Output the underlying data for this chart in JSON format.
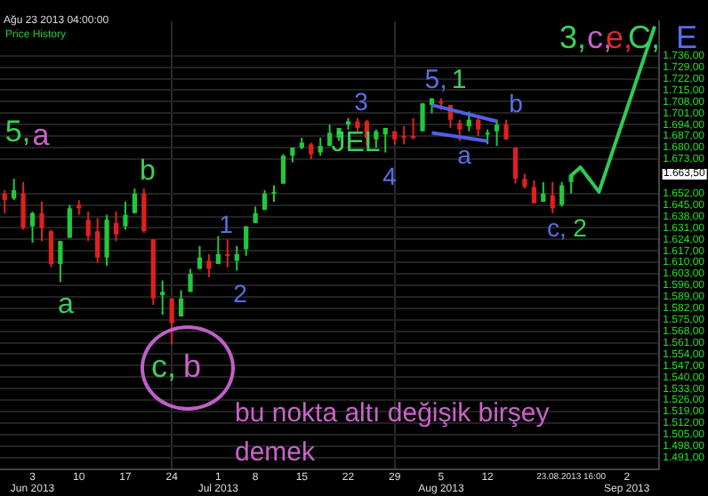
{
  "chart_data": {
    "type": "candlestick",
    "subtitle": "Ağu 23 2013 04:00:00",
    "categories": [
      null,
      null,
      null,
      "3\nJun 2013",
      null,
      null,
      null,
      null,
      "10",
      null,
      null,
      null,
      null,
      "17",
      null,
      null,
      null,
      null,
      "24",
      null,
      null,
      null,
      null,
      "1\nJul 2013",
      null,
      null,
      null,
      "8",
      null,
      null,
      null,
      null,
      "15",
      null,
      null,
      null,
      null,
      "22",
      null,
      null,
      null,
      null,
      "29",
      null,
      null,
      null,
      null,
      "5\nAug 2013",
      null,
      null,
      null,
      null,
      "12",
      null,
      null,
      null,
      null,
      null,
      null,
      null,
      null,
      null,
      null,
      null,
      null,
      null,
      null,
      "2\nSep 2013",
      null,
      null,
      null
    ],
    "ohlc": [
      [
        1652,
        1654,
        1640,
        1648
      ],
      [
        1649,
        1661,
        1648,
        1654
      ],
      [
        1652,
        1659,
        1630,
        1631
      ],
      [
        1632,
        1641,
        1622,
        1640
      ],
      [
        1640,
        1647,
        1623,
        1631
      ],
      [
        1629,
        1630,
        1607,
        1609
      ],
      [
        1609,
        1623,
        1598,
        1623
      ],
      [
        1625,
        1645,
        1625,
        1643
      ],
      [
        1645,
        1648,
        1639,
        1643
      ],
      [
        1636,
        1641,
        1623,
        1626
      ],
      [
        1629,
        1637,
        1610,
        1613
      ],
      [
        1613,
        1639,
        1608,
        1636
      ],
      [
        1634,
        1641,
        1623,
        1627
      ],
      [
        1632,
        1647,
        1630,
        1639
      ],
      [
        1640,
        1655,
        1640,
        1652
      ],
      [
        1652,
        1655,
        1628,
        1629
      ],
      [
        1624,
        1624,
        1584,
        1588
      ],
      [
        1590,
        1599,
        1578,
        1592
      ],
      [
        1588,
        1588,
        1560,
        1573
      ],
      [
        1577,
        1593,
        1577,
        1588
      ],
      [
        1592,
        1606,
        1592,
        1603
      ],
      [
        1606,
        1620,
        1606,
        1613
      ],
      [
        1611,
        1615,
        1601,
        1606
      ],
      [
        1609,
        1626,
        1609,
        1615
      ],
      [
        1615,
        1624,
        1607,
        1614
      ],
      [
        1611,
        1620,
        1605,
        1615
      ],
      [
        1618,
        1632,
        1614,
        1632
      ],
      [
        1634,
        1644,
        1634,
        1640
      ],
      [
        1642,
        1654,
        1642,
        1652
      ],
      [
        1652,
        1657,
        1647,
        1653
      ],
      [
        1658,
        1676,
        1658,
        1675
      ],
      [
        1675,
        1680,
        1671,
        1680
      ],
      [
        1680,
        1686,
        1679,
        1683
      ],
      [
        1682,
        1683,
        1673,
        1676
      ],
      [
        1677,
        1686,
        1675,
        1681
      ],
      [
        1681,
        1694,
        1681,
        1689
      ],
      [
        1686,
        1692,
        1684,
        1692
      ],
      [
        1694,
        1698,
        1691,
        1696
      ],
      [
        1696,
        1698,
        1690,
        1692
      ],
      [
        1696,
        1697,
        1681,
        1686
      ],
      [
        1685,
        1691,
        1680,
        1690
      ],
      [
        1688,
        1692,
        1677,
        1692
      ],
      [
        1690,
        1690,
        1682,
        1685
      ],
      [
        1687,
        1693,
        1682,
        1686
      ],
      [
        1687,
        1698,
        1685,
        1686
      ],
      [
        1690,
        1707,
        1690,
        1707
      ],
      [
        1706,
        1710,
        1701,
        1710
      ],
      [
        1708,
        1710,
        1703,
        1707
      ],
      [
        1706,
        1706,
        1692,
        1697
      ],
      [
        1695,
        1697,
        1684,
        1691
      ],
      [
        1693,
        1702,
        1690,
        1697
      ],
      [
        1697,
        1700,
        1687,
        1691
      ],
      [
        1689,
        1691,
        1682,
        1689
      ],
      [
        1690,
        1697,
        1681,
        1694
      ],
      [
        1694,
        1697,
        1685,
        1685
      ],
      [
        1680,
        1680,
        1658,
        1661
      ],
      [
        1661,
        1664,
        1655,
        1656
      ],
      [
        1656,
        1660,
        1646,
        1646
      ],
      [
        1647,
        1659,
        1647,
        1652
      ],
      [
        1651,
        1659,
        1640,
        1643
      ],
      [
        1645,
        1659,
        1644,
        1657
      ],
      [
        1659,
        1664,
        1652,
        1663.5
      ],
      null,
      null,
      null,
      null,
      null,
      null,
      null,
      null,
      null
    ],
    "colors": [
      "#e02020",
      "#22c83c",
      "#e02020",
      "#22c83c",
      "#e02020",
      "#e02020",
      "#22c83c",
      "#22c83c",
      "#e02020",
      "#e02020",
      "#e02020",
      "#22c83c",
      "#e02020",
      "#22c83c",
      "#22c83c",
      "#e02020",
      "#e02020",
      "#22c83c",
      "#e02020",
      "#22c83c",
      "#22c83c",
      "#22c83c",
      "#e02020",
      "#22c83c",
      "#e02020",
      "#22c83c",
      "#22c83c",
      "#22c83c",
      "#22c83c",
      "#22c83c",
      "#22c83c",
      "#22c83c",
      "#22c83c",
      "#e02020",
      "#22c83c",
      "#22c83c",
      "#22c83c",
      "#22c83c",
      "#e02020",
      "#e02020",
      "#22c83c",
      "#22c83c",
      "#e02020",
      "#e02020",
      "#e02020",
      "#22c83c",
      "#22c83c",
      "#e02020",
      "#e02020",
      "#e02020",
      "#22c83c",
      "#e02020",
      "#22c83c",
      "#22c83c",
      "#e02020",
      "#e02020",
      "#e02020",
      "#e02020",
      "#22c83c",
      "#e02020",
      "#22c83c",
      "#22c83c",
      null,
      null,
      null,
      null,
      null,
      null,
      null,
      null,
      null
    ],
    "series": [
      {
        "type": "line",
        "color": "#2ecc55",
        "values": [
          null,
          null,
          null,
          null,
          null,
          null,
          null,
          null,
          null,
          null,
          null,
          null,
          null,
          null,
          null,
          null,
          null,
          null,
          null,
          null,
          null,
          null,
          null,
          null,
          null,
          null,
          null,
          null,
          null,
          null,
          null,
          null,
          null,
          null,
          null,
          null,
          null,
          null,
          null,
          null,
          null,
          null,
          null,
          null,
          null,
          null,
          null,
          null,
          null,
          null,
          null,
          null,
          null,
          null,
          null,
          null,
          null,
          null,
          null,
          null,
          null,
          1663,
          1668,
          null,
          1653,
          null,
          null,
          null,
          null,
          null,
          1754
        ]
      },
      {
        "type": "line",
        "color": "#5060e8",
        "values": [
          null,
          null,
          null,
          null,
          null,
          null,
          null,
          null,
          null,
          null,
          null,
          null,
          null,
          null,
          null,
          null,
          null,
          null,
          null,
          null,
          null,
          null,
          null,
          null,
          null,
          null,
          null,
          null,
          null,
          null,
          null,
          null,
          null,
          null,
          null,
          null,
          null,
          null,
          null,
          null,
          null,
          null,
          null,
          null,
          null,
          null,
          1706,
          null,
          null,
          null,
          null,
          null,
          null,
          1696,
          null,
          null,
          null,
          null,
          null,
          null,
          null,
          null,
          null,
          null,
          null,
          null,
          null,
          null,
          null,
          null,
          null
        ]
      },
      {
        "type": "line",
        "color": "#5060e8",
        "values": [
          null,
          null,
          null,
          null,
          null,
          null,
          null,
          null,
          null,
          null,
          null,
          null,
          null,
          null,
          null,
          null,
          null,
          null,
          null,
          null,
          null,
          null,
          null,
          null,
          null,
          null,
          null,
          null,
          null,
          null,
          null,
          null,
          null,
          null,
          null,
          null,
          null,
          null,
          null,
          null,
          null,
          null,
          null,
          null,
          null,
          null,
          1689,
          null,
          null,
          null,
          null,
          null,
          1684,
          null,
          null,
          null,
          null,
          null,
          null,
          null,
          null,
          null,
          null,
          null,
          null,
          null,
          null,
          null,
          null,
          null,
          null
        ]
      }
    ],
    "ylim": [
      1484,
      1757
    ],
    "yticks": [
      {
        "value": 1491,
        "label": "1.491,00"
      },
      {
        "value": 1498,
        "label": "1.498,00"
      },
      {
        "value": 1505,
        "label": "1.505,00"
      },
      {
        "value": 1512,
        "label": "1.512,00"
      },
      {
        "value": 1519,
        "label": "1.519,00"
      },
      {
        "value": 1526,
        "label": "1.526,00"
      },
      {
        "value": 1533,
        "label": "1.533,00"
      },
      {
        "value": 1540,
        "label": "1.540,00"
      },
      {
        "value": 1547,
        "label": "1.547,00"
      },
      {
        "value": 1554,
        "label": "1.554,00"
      },
      {
        "value": 1561,
        "label": "1.561,00"
      },
      {
        "value": 1568,
        "label": "1.568,00"
      },
      {
        "value": 1575,
        "label": "1.575,00"
      },
      {
        "value": 1582,
        "label": "1.582,00"
      },
      {
        "value": 1589,
        "label": "1.589,00"
      },
      {
        "value": 1596,
        "label": "1.596,00"
      },
      {
        "value": 1603,
        "label": "1.603,00"
      },
      {
        "value": 1610,
        "label": "1.610,00"
      },
      {
        "value": 1617,
        "label": "1.617,00"
      },
      {
        "value": 1624,
        "label": "1.624,00"
      },
      {
        "value": 1631,
        "label": "1.631,00"
      },
      {
        "value": 1638,
        "label": "1.638,00"
      },
      {
        "value": 1645,
        "label": "1.645,00"
      },
      {
        "value": 1652,
        "label": "1.652,00"
      },
      {
        "value": 1673,
        "label": "1.673,00"
      },
      {
        "value": 1680,
        "label": "1.680,00"
      },
      {
        "value": 1687,
        "label": "1.687,00"
      },
      {
        "value": 1694,
        "label": "1.694,00"
      },
      {
        "value": 1701,
        "label": "1.701,00"
      },
      {
        "value": 1708,
        "label": "1.708,00"
      },
      {
        "value": 1715,
        "label": "1.715,00"
      },
      {
        "value": 1722,
        "label": "1.722,00"
      },
      {
        "value": 1729,
        "label": "1.729,00"
      },
      {
        "value": 1736,
        "label": "1.736,00"
      }
    ],
    "grid": true,
    "annotations": [
      "Price History",
      "5,",
      "a",
      "b",
      "a",
      "1",
      "2",
      "JEL",
      "3",
      "4",
      "5,",
      "1",
      "a",
      "b",
      "c,",
      "2",
      "3,",
      "c,",
      "e,",
      "C,",
      "E",
      "c,",
      "b",
      "bu nokta altı değişik birşey demek",
      "1.663,50",
      "23.08.2013 16:00"
    ]
  }
}
